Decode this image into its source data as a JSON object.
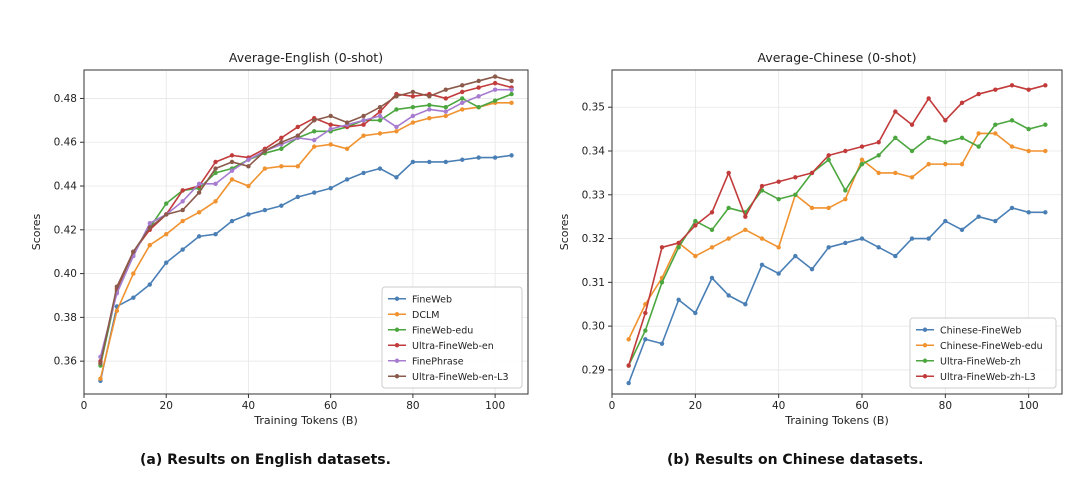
{
  "chart_data": [
    {
      "type": "line",
      "title": "Average-English (0-shot)",
      "xlabel": "Training Tokens (B)",
      "ylabel": "Scores",
      "xlim": [
        0,
        108
      ],
      "ylim": [
        0.345,
        0.493
      ],
      "xticks": [
        0,
        20,
        40,
        60,
        80,
        100
      ],
      "yticks": [
        0.36,
        0.38,
        0.4,
        0.42,
        0.44,
        0.46,
        0.48
      ],
      "ytick_labels": [
        "0.36",
        "0.38",
        "0.40",
        "0.42",
        "0.44",
        "0.46",
        "0.48"
      ],
      "grid": true,
      "legend_position": "lower-right",
      "x": [
        4,
        8,
        12,
        16,
        20,
        24,
        28,
        32,
        36,
        40,
        44,
        48,
        52,
        56,
        60,
        64,
        68,
        72,
        76,
        80,
        84,
        88,
        92,
        96,
        100,
        104
      ],
      "series": [
        {
          "name": "FineWeb",
          "color": "#4a7fb5",
          "values": [
            0.351,
            0.385,
            0.389,
            0.395,
            0.405,
            0.411,
            0.417,
            0.418,
            0.424,
            0.427,
            0.429,
            0.431,
            0.435,
            0.437,
            0.439,
            0.443,
            0.446,
            0.448,
            0.444,
            0.451,
            0.451,
            0.451,
            0.452,
            0.453,
            0.453,
            0.454
          ]
        },
        {
          "name": "DCLM",
          "color": "#f0922f",
          "values": [
            0.352,
            0.383,
            0.4,
            0.413,
            0.418,
            0.424,
            0.428,
            0.433,
            0.443,
            0.44,
            0.448,
            0.449,
            0.449,
            0.458,
            0.459,
            0.457,
            0.463,
            0.464,
            0.465,
            0.469,
            0.471,
            0.472,
            0.475,
            0.476,
            0.478,
            0.478
          ]
        },
        {
          "name": "FineWeb-edu",
          "color": "#4ca63f",
          "values": [
            0.358,
            0.392,
            0.409,
            0.421,
            0.432,
            0.438,
            0.439,
            0.446,
            0.448,
            0.452,
            0.455,
            0.457,
            0.462,
            0.465,
            0.465,
            0.467,
            0.47,
            0.47,
            0.475,
            0.476,
            0.477,
            0.476,
            0.48,
            0.476,
            0.479,
            0.482
          ]
        },
        {
          "name": "Ultra-FineWeb-en",
          "color": "#c23b3b",
          "values": [
            0.36,
            0.393,
            0.41,
            0.42,
            0.427,
            0.438,
            0.44,
            0.451,
            0.454,
            0.453,
            0.457,
            0.462,
            0.467,
            0.471,
            0.468,
            0.467,
            0.468,
            0.474,
            0.482,
            0.481,
            0.482,
            0.48,
            0.483,
            0.485,
            0.487,
            0.485
          ]
        },
        {
          "name": "FinePhrase",
          "color": "#a77cd0",
          "values": [
            0.362,
            0.391,
            0.408,
            0.423,
            0.427,
            0.433,
            0.441,
            0.441,
            0.447,
            0.452,
            0.456,
            0.459,
            0.462,
            0.461,
            0.466,
            0.468,
            0.47,
            0.472,
            0.467,
            0.472,
            0.475,
            0.474,
            0.478,
            0.481,
            0.484,
            0.484
          ]
        },
        {
          "name": "Ultra-FineWeb-en-L3",
          "color": "#8b5a4a",
          "values": [
            0.359,
            0.394,
            0.41,
            0.421,
            0.427,
            0.429,
            0.437,
            0.448,
            0.451,
            0.449,
            0.456,
            0.46,
            0.463,
            0.47,
            0.472,
            0.469,
            0.472,
            0.476,
            0.481,
            0.483,
            0.481,
            0.484,
            0.486,
            0.488,
            0.49,
            0.488
          ]
        }
      ]
    },
    {
      "type": "line",
      "title": "Average-Chinese (0-shot)",
      "xlabel": "Training Tokens (B)",
      "ylabel": "Scores",
      "xlim": [
        0,
        108
      ],
      "ylim": [
        0.2845,
        0.3585
      ],
      "xticks": [
        0,
        20,
        40,
        60,
        80,
        100
      ],
      "yticks": [
        0.29,
        0.3,
        0.31,
        0.32,
        0.33,
        0.34,
        0.35
      ],
      "ytick_labels": [
        "0.29",
        "0.30",
        "0.31",
        "0.32",
        "0.33",
        "0.34",
        "0.35"
      ],
      "grid": true,
      "legend_position": "lower-right",
      "x": [
        4,
        8,
        12,
        16,
        20,
        24,
        28,
        32,
        36,
        40,
        44,
        48,
        52,
        56,
        60,
        64,
        68,
        72,
        76,
        80,
        84,
        88,
        92,
        96,
        100,
        104
      ],
      "series": [
        {
          "name": "Chinese-FineWeb",
          "color": "#4a7fb5",
          "values": [
            0.287,
            0.297,
            0.296,
            0.306,
            0.303,
            0.311,
            0.307,
            0.305,
            0.314,
            0.312,
            0.316,
            0.313,
            0.318,
            0.319,
            0.32,
            0.318,
            0.316,
            0.32,
            0.32,
            0.324,
            0.322,
            0.325,
            0.324,
            0.327,
            0.326,
            0.326
          ]
        },
        {
          "name": "Chinese-FineWeb-edu",
          "color": "#f0922f",
          "values": [
            0.297,
            0.305,
            0.311,
            0.319,
            0.316,
            0.318,
            0.32,
            0.322,
            0.32,
            0.318,
            0.33,
            0.327,
            0.327,
            0.329,
            0.338,
            0.335,
            0.335,
            0.334,
            0.337,
            0.337,
            0.337,
            0.344,
            0.344,
            0.341,
            0.34,
            0.34
          ]
        },
        {
          "name": "Ultra-FineWeb-zh",
          "color": "#4ca63f",
          "values": [
            0.291,
            0.299,
            0.31,
            0.318,
            0.324,
            0.322,
            0.327,
            0.326,
            0.331,
            0.329,
            0.33,
            0.335,
            0.338,
            0.331,
            0.337,
            0.339,
            0.343,
            0.34,
            0.343,
            0.342,
            0.343,
            0.341,
            0.346,
            0.347,
            0.345,
            0.346
          ]
        },
        {
          "name": "Ultra-FineWeb-zh-L3",
          "color": "#c23b3b",
          "values": [
            0.291,
            0.303,
            0.318,
            0.319,
            0.323,
            0.326,
            0.335,
            0.325,
            0.332,
            0.333,
            0.334,
            0.335,
            0.339,
            0.34,
            0.341,
            0.342,
            0.349,
            0.346,
            0.352,
            0.347,
            0.351,
            0.353,
            0.354,
            0.355,
            0.354,
            0.355
          ]
        }
      ]
    }
  ],
  "captions": [
    "(a) Results on English datasets.",
    "(b) Results on Chinese datasets."
  ]
}
